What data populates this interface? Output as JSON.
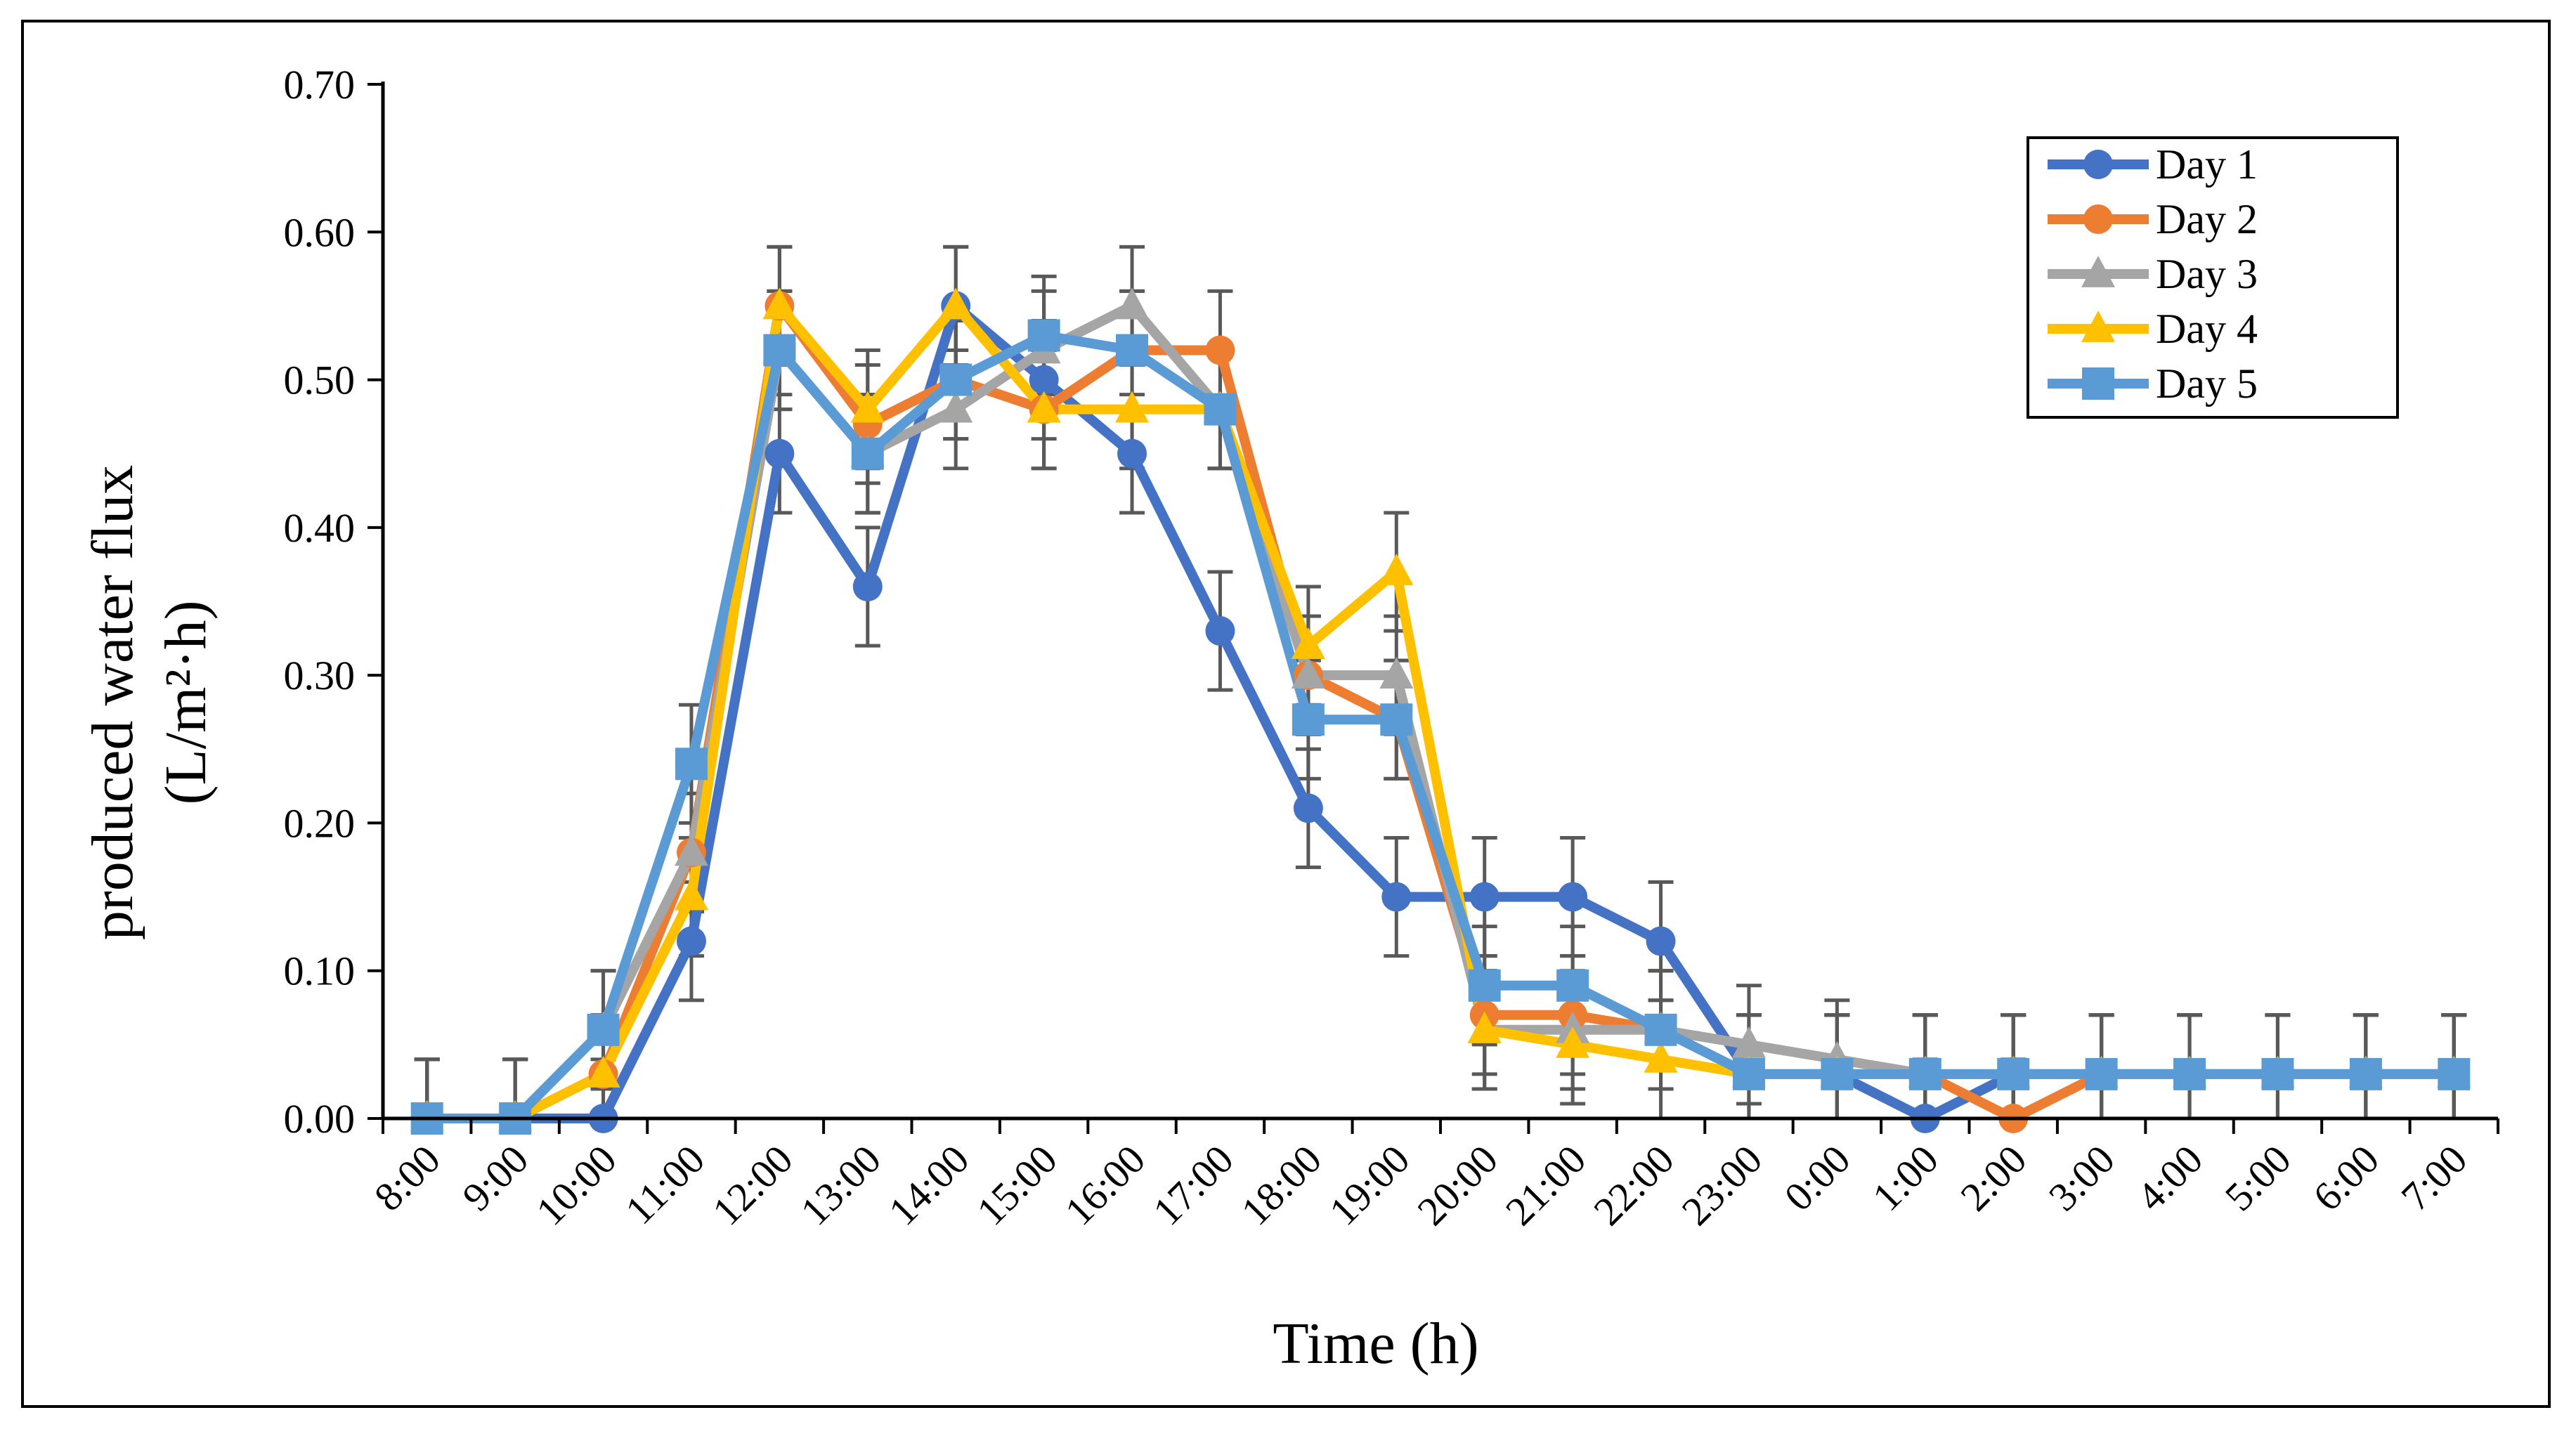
{
  "chart_data": {
    "type": "line",
    "title": "",
    "xlabel": "Time (h)",
    "ylabel_line1": "produced water flux",
    "ylabel_line2": "(L/m²·h)",
    "categories": [
      "8:00",
      "9:00",
      "10:00",
      "11:00",
      "12:00",
      "13:00",
      "14:00",
      "15:00",
      "16:00",
      "17:00",
      "18:00",
      "19:00",
      "20:00",
      "21:00",
      "22:00",
      "23:00",
      "0:00",
      "1:00",
      "2:00",
      "3:00",
      "4:00",
      "5:00",
      "6:00",
      "7:00"
    ],
    "y_ticks": [
      "0.00",
      "0.10",
      "0.20",
      "0.30",
      "0.40",
      "0.50",
      "0.60",
      "0.70"
    ],
    "ylim": [
      0,
      0.7
    ],
    "grid": false,
    "legend_position": "top-right",
    "error_bar_size": 0.04,
    "series": [
      {
        "name": "Day 1",
        "color": "#4472C4",
        "marker": "circle",
        "values": [
          0,
          0,
          0,
          0.12,
          0.45,
          0.36,
          0.55,
          0.5,
          0.45,
          0.33,
          0.21,
          0.15,
          0.15,
          0.15,
          0.12,
          0.03,
          0.03,
          0.0,
          0.03,
          0.03,
          0.03,
          0.03,
          0.03,
          0.03
        ]
      },
      {
        "name": "Day 2",
        "color": "#ED7D31",
        "marker": "circle",
        "values": [
          0,
          0,
          0.03,
          0.18,
          0.55,
          0.47,
          0.5,
          0.48,
          0.52,
          0.52,
          0.3,
          0.27,
          0.07,
          0.07,
          0.06,
          0.03,
          0.03,
          0.03,
          0.0,
          0.03,
          0.03,
          0.03,
          0.03,
          0.03
        ]
      },
      {
        "name": "Day 3",
        "color": "#A5A5A5",
        "marker": "triangle",
        "values": [
          0,
          0,
          0.06,
          0.18,
          0.52,
          0.45,
          0.48,
          0.52,
          0.55,
          0.48,
          0.3,
          0.3,
          0.06,
          0.06,
          0.06,
          0.05,
          0.04,
          0.03,
          0.03,
          0.03,
          0.03,
          0.03,
          0.03,
          0.03
        ]
      },
      {
        "name": "Day 4",
        "color": "#FFC000",
        "marker": "triangle",
        "values": [
          0,
          0,
          0.03,
          0.15,
          0.55,
          0.48,
          0.55,
          0.48,
          0.48,
          0.48,
          0.32,
          0.37,
          0.06,
          0.05,
          0.04,
          0.03,
          0.03,
          0.03,
          0.03,
          0.03,
          0.03,
          0.03,
          0.03,
          0.03
        ]
      },
      {
        "name": "Day 5",
        "color": "#5B9BD5",
        "marker": "square",
        "values": [
          0,
          0,
          0.06,
          0.24,
          0.52,
          0.45,
          0.5,
          0.53,
          0.52,
          0.48,
          0.27,
          0.27,
          0.09,
          0.09,
          0.06,
          0.03,
          0.03,
          0.03,
          0.03,
          0.03,
          0.03,
          0.03,
          0.03,
          0.03
        ]
      }
    ]
  }
}
